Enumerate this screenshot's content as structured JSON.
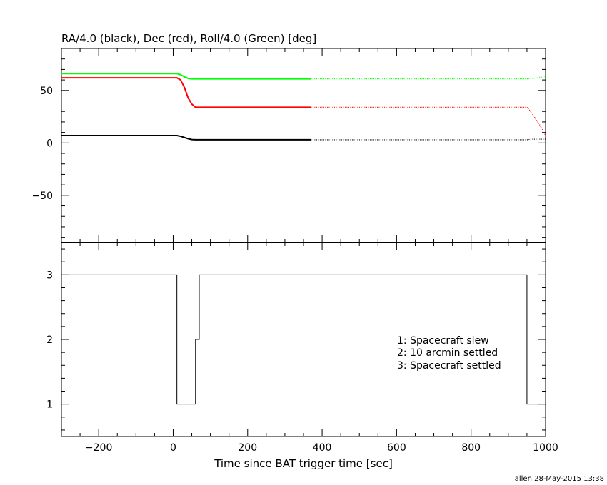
{
  "footer": "allen 28-May-2015 13:38",
  "chart_data": [
    {
      "type": "line",
      "title": "RA/4.0 (black), Dec (red), Roll/4.0 (Green) [deg]",
      "xlabel": "",
      "ylabel": "",
      "xlim": [
        -300,
        1000
      ],
      "ylim": [
        -95,
        90
      ],
      "xticks": [
        -200,
        0,
        200,
        400,
        600,
        800,
        1000
      ],
      "yticks": [
        -50,
        0,
        50
      ],
      "ytick_labels": [
        "−50",
        "0",
        "50"
      ],
      "series": [
        {
          "color": "#000000",
          "x": [
            -300,
            10,
            20,
            30,
            40,
            50,
            60,
            370,
            950,
            960,
            1000
          ],
          "y": [
            7,
            7,
            6.3,
            5.2,
            4,
            3.2,
            3,
            3,
            3,
            3.5,
            3.6
          ]
        },
        {
          "color": "#ff0000",
          "x": [
            -300,
            10,
            20,
            30,
            40,
            50,
            60,
            370,
            950,
            960,
            975,
            990,
            1000
          ],
          "y": [
            62,
            62,
            60,
            53,
            43,
            37,
            34,
            34,
            34,
            30,
            22,
            14,
            7
          ]
        },
        {
          "color": "#00ff00",
          "x": [
            -300,
            10,
            20,
            30,
            40,
            50,
            370,
            950,
            965,
            980,
            1000
          ],
          "y": [
            66,
            66,
            65,
            63,
            61.5,
            61,
            61,
            61,
            61.3,
            62.5,
            63
          ]
        }
      ],
      "dotted_after_x": 370
    },
    {
      "type": "line",
      "title": "",
      "xlabel": "Time since BAT trigger time [sec]",
      "ylabel": "",
      "xlim": [
        -300,
        1000
      ],
      "ylim": [
        0.5,
        3.5
      ],
      "xticks": [
        -200,
        0,
        200,
        400,
        600,
        800,
        1000
      ],
      "xtick_labels": [
        "−200",
        "0",
        "200",
        "400",
        "600",
        "800",
        "1000"
      ],
      "yticks": [
        1,
        2,
        3
      ],
      "step": true,
      "series": [
        {
          "color": "#000000",
          "x": [
            -300,
            10,
            10,
            60,
            60,
            70,
            70,
            950,
            950,
            1000
          ],
          "y": [
            3,
            3,
            1,
            1,
            2,
            2,
            3,
            3,
            1,
            1
          ]
        }
      ],
      "legend": [
        "1: Spacecraft slew",
        "2: 10 arcmin settled",
        "3: Spacecraft settled"
      ]
    }
  ]
}
